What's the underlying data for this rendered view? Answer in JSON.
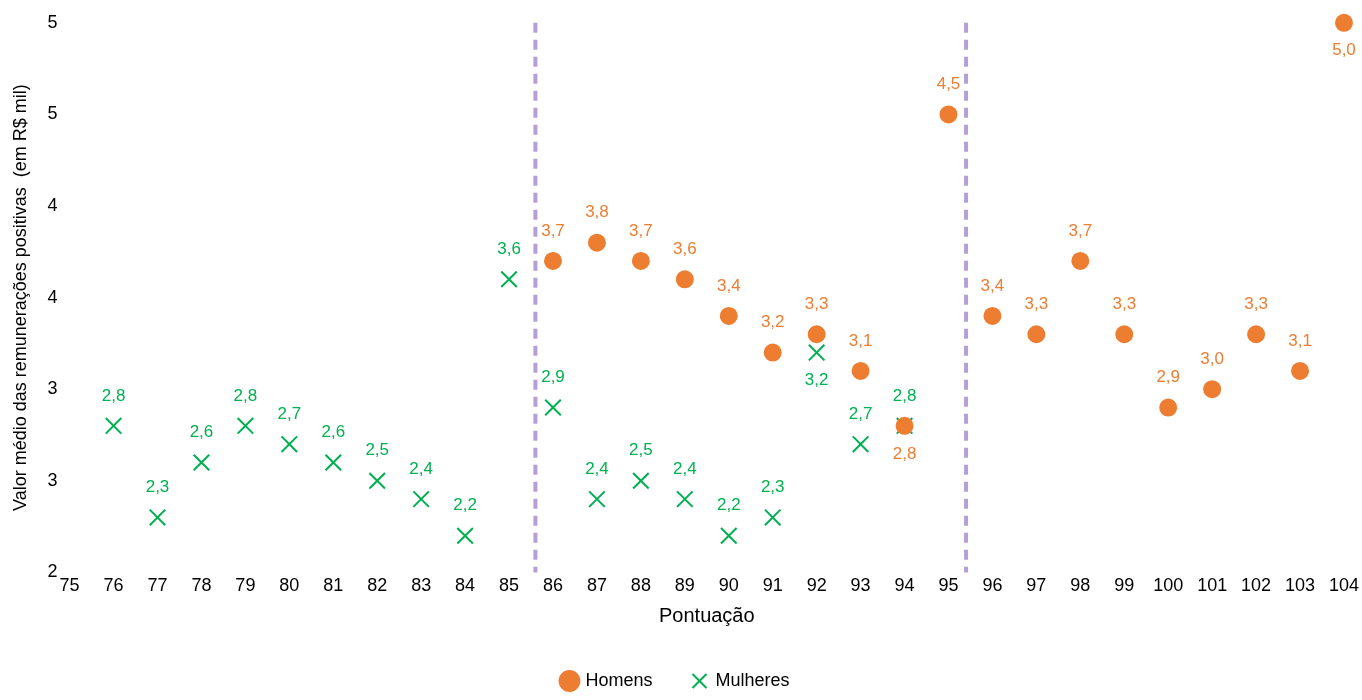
{
  "chart_data": {
    "type": "scatter",
    "xlabel": "Pontuação",
    "ylabel": "Valor médio das remunerações positivas  (em R$ mil)",
    "xlim": [
      75,
      104
    ],
    "xticks": [
      75,
      76,
      77,
      78,
      79,
      80,
      81,
      82,
      83,
      84,
      85,
      86,
      87,
      88,
      89,
      90,
      91,
      92,
      93,
      94,
      95,
      96,
      97,
      98,
      99,
      100,
      101,
      102,
      103,
      104
    ],
    "ylim": [
      2,
      5
    ],
    "yticks": [
      2,
      {
        "value": 2.5,
        "label": "3"
      },
      3,
      {
        "value": 3.5,
        "label": "4"
      },
      4,
      {
        "value": 4.5,
        "label": "5"
      },
      5
    ],
    "grid": false,
    "legend": "bottom",
    "ref_lines": [
      {
        "axis": "x",
        "value": 85.6,
        "color": "#b4a0d8",
        "line_style": "dashed"
      },
      {
        "axis": "x",
        "value": 95.4,
        "color": "#b4a0d8",
        "line_style": "dashed"
      }
    ],
    "series": [
      {
        "name": "Homens",
        "color": "#ed7d31",
        "marker": "circle",
        "x": [
          86,
          87,
          88,
          89,
          90,
          91,
          92,
          93,
          94,
          95,
          96,
          97,
          98,
          99,
          100,
          101,
          102,
          103,
          104
        ],
        "values": [
          3.7,
          3.8,
          3.7,
          3.6,
          3.4,
          3.2,
          3.3,
          3.1,
          2.8,
          4.5,
          3.4,
          3.3,
          3.7,
          3.3,
          2.9,
          3.0,
          3.3,
          3.1,
          5.0
        ],
        "value_labels": [
          "3,7",
          "3,8",
          "3,7",
          "3,6",
          "3,4",
          "3,2",
          "3,3",
          "3,1",
          "2,8",
          "4,5",
          "3,4",
          "3,3",
          "3,7",
          "3,3",
          "2,9",
          "3,0",
          "3,3",
          "3,1",
          "5,0"
        ]
      },
      {
        "name": "Mulheres",
        "color": "#00b050",
        "marker": "cross",
        "x": [
          76,
          77,
          78,
          79,
          80,
          81,
          82,
          83,
          84,
          85,
          86,
          87,
          88,
          89,
          90,
          91,
          92,
          93,
          94
        ],
        "values": [
          2.8,
          2.3,
          2.6,
          2.8,
          2.7,
          2.6,
          2.5,
          2.4,
          2.2,
          3.6,
          2.9,
          2.4,
          2.5,
          2.4,
          2.2,
          2.3,
          3.2,
          2.7,
          2.8
        ],
        "value_labels": [
          "2,8",
          "2,3",
          "2,6",
          "2,8",
          "2,7",
          "2,6",
          "2,5",
          "2,4",
          "2,2",
          "3,6",
          "2,9",
          "2,4",
          "2,5",
          "2,4",
          "2,2",
          "2,3",
          "3,2",
          "2,7",
          "2,8"
        ]
      }
    ]
  }
}
